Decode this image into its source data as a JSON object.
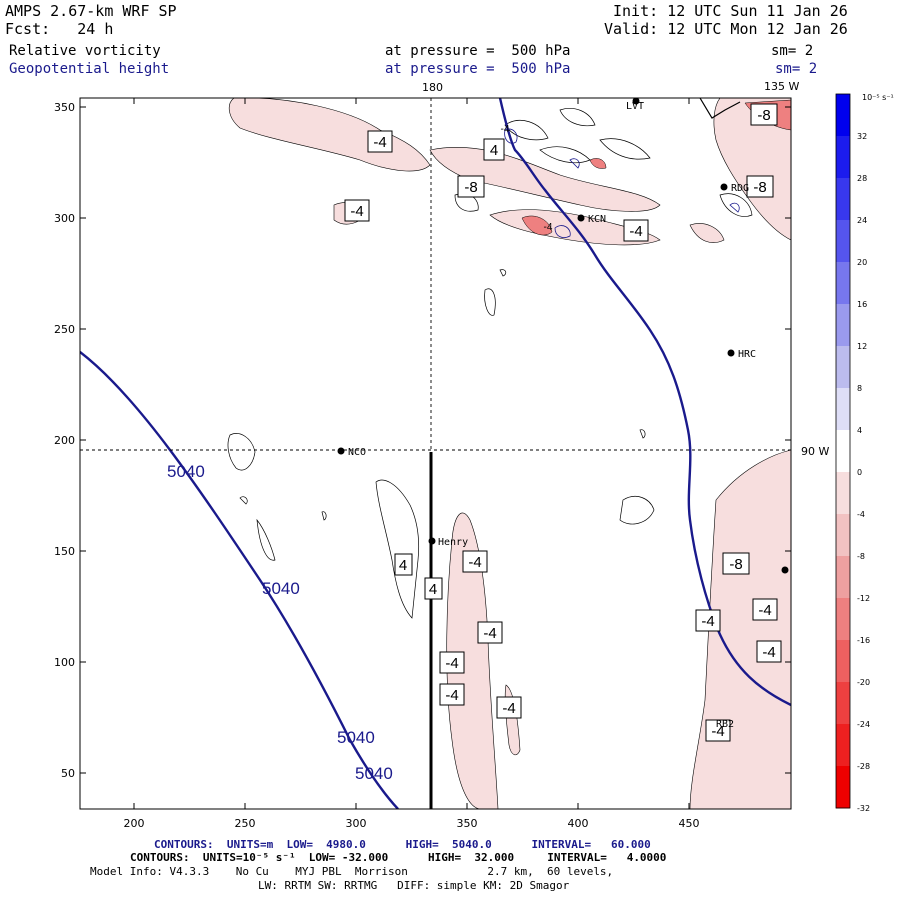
{
  "header": {
    "model_title": "AMPS 2.67-km WRF SP",
    "forecast": "Fcst:   24 h",
    "init": "Init: 12 UTC Sun 11 Jan 26",
    "valid": "Valid: 12 UTC Mon 12 Jan 26",
    "field1": {
      "name": "Relative vorticity",
      "pressure": "at pressure =  500 hPa",
      "sm": "sm= 2"
    },
    "field2": {
      "name": "Geopotential height",
      "pressure": "at pressure =  500 hPa",
      "sm": "sm= 2"
    }
  },
  "map": {
    "top_labels": [
      "180",
      "135 W"
    ],
    "right_label": "90 W",
    "y_ticks": [
      "350",
      "300",
      "250",
      "200",
      "150",
      "100",
      "50"
    ],
    "x_ticks": [
      "200",
      "250",
      "300",
      "350",
      "400",
      "450"
    ],
    "stations": [
      "LVT",
      "RDG",
      "KCN",
      "HRC",
      "NCO",
      "Henry",
      "RB2"
    ],
    "height_contour_labels": [
      "5040",
      "5040",
      "5040",
      "5040"
    ],
    "vorticity_labels": [
      "-4",
      "-4",
      "4",
      "-8",
      "-4",
      "-4",
      "-8",
      "-8",
      "4",
      "-4",
      "4",
      "-4",
      "-4",
      "-4",
      "-4",
      "-4",
      "-8",
      "-4",
      "-4",
      "-4",
      "-4"
    ]
  },
  "colorbar": {
    "unit": "10⁻⁵ s⁻¹",
    "labels": [
      "32",
      "28",
      "24",
      "20",
      "16",
      "12",
      "8",
      "4",
      "0",
      "-4",
      "-8",
      "-12",
      "-16",
      "-20",
      "-24",
      "-28",
      "-32"
    ],
    "colors": [
      "#0000ee",
      "#1c1cee",
      "#3838ee",
      "#5555ee",
      "#7777ee",
      "#9a9aee",
      "#bcbcee",
      "#dedef7",
      "#ffffff",
      "#f7dede",
      "#f2c2c2",
      "#eea0a0",
      "#ee8080",
      "#ee6060",
      "#ee4040",
      "#ee2020",
      "#ee0000"
    ]
  },
  "footer": {
    "line1": "CONTOURS:  UNITS=m  LOW=  4980.0      HIGH=  5040.0      INTERVAL=   60.000",
    "line2": "CONTOURS:  UNITS=10⁻⁵ s⁻¹  LOW= -32.000      HIGH=  32.000     INTERVAL=   4.0000",
    "line3": "Model Info: V4.3.3    No Cu    MYJ PBL  Morrison            2.7 km,  60 levels,",
    "line4": "LW: RRTM SW: RRTMG   DIFF: simple KM: 2D Smagor"
  }
}
